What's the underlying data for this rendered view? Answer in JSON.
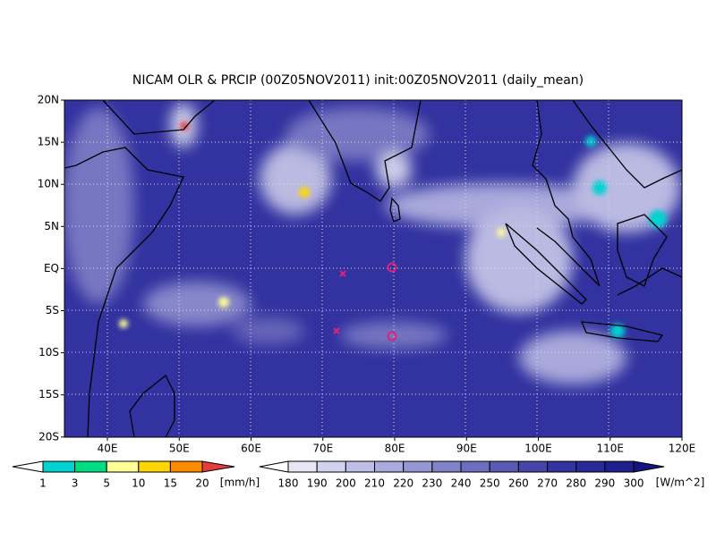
{
  "title": "NICAM OLR & PRCIP (00Z05NOV2011) init:00Z05NOV2011 (daily_mean)",
  "lat_labels": [
    "20N",
    "15N",
    "10N",
    "5N",
    "EQ",
    "5S",
    "10S",
    "15S",
    "20S"
  ],
  "lon_labels": [
    "40E",
    "50E",
    "60E",
    "70E",
    "80E",
    "90E",
    "100E",
    "110E",
    "120E"
  ],
  "precip_legend": {
    "levels": [
      1,
      3,
      5,
      10,
      15,
      20
    ],
    "unit": "[mm/h]",
    "colors": [
      "#ffffff",
      "#00d2d2",
      "#00dc82",
      "#ffff96",
      "#ffd700",
      "#ff8c00",
      "#e63c3c"
    ]
  },
  "olr_legend": {
    "levels": [
      180,
      190,
      200,
      210,
      220,
      230,
      240,
      250,
      260,
      270,
      280,
      290,
      300
    ],
    "unit": "[W/m^2]",
    "colors": [
      "#ffffff",
      "#e6e6f5",
      "#d2d2ee",
      "#bebee6",
      "#aaaadc",
      "#9696d2",
      "#8282c8",
      "#6e6ebe",
      "#5a5ab4",
      "#4646aa",
      "#3232a0",
      "#282896",
      "#1e1e8c",
      "#141482"
    ]
  }
}
